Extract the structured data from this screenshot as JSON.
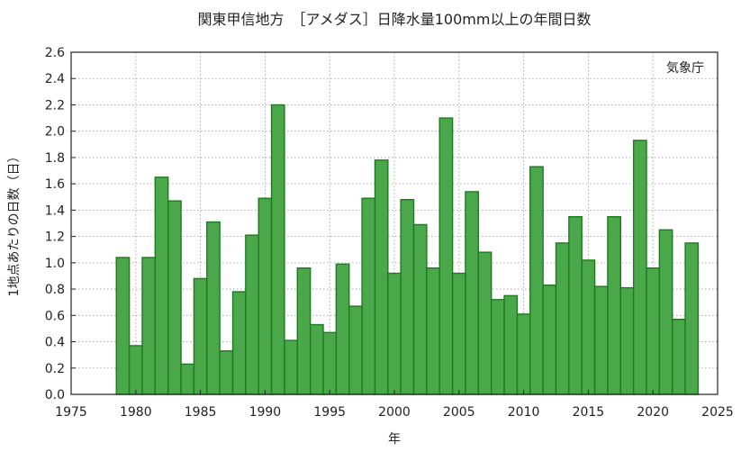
{
  "chart_data": {
    "type": "bar",
    "title": "関東甲信地方　［アメダス］日降水量100mm以上の年間日数",
    "xlabel": "年",
    "ylabel": "1地点あたりの日数（日）",
    "annotation": "気象庁",
    "xlim": [
      1975,
      2025
    ],
    "ylim": [
      0,
      2.6
    ],
    "xticks": [
      1975,
      1980,
      1985,
      1990,
      1995,
      2000,
      2005,
      2010,
      2015,
      2020,
      2025
    ],
    "yticks": [
      0.0,
      0.2,
      0.4,
      0.6,
      0.8,
      1.0,
      1.2,
      1.4,
      1.6,
      1.8,
      2.0,
      2.2,
      2.4,
      2.6
    ],
    "grid": true,
    "bar_color": "#4aa84a",
    "bar_edge_color": "#1e7a1e",
    "x": [
      1979,
      1980,
      1981,
      1982,
      1983,
      1984,
      1985,
      1986,
      1987,
      1988,
      1989,
      1990,
      1991,
      1992,
      1993,
      1994,
      1995,
      1996,
      1997,
      1998,
      1999,
      2000,
      2001,
      2002,
      2003,
      2004,
      2005,
      2006,
      2007,
      2008,
      2009,
      2010,
      2011,
      2012,
      2013,
      2014,
      2015,
      2016,
      2017,
      2018,
      2019,
      2020,
      2021,
      2022,
      2023
    ],
    "values": [
      1.04,
      0.37,
      1.04,
      1.65,
      1.47,
      0.23,
      0.88,
      1.31,
      0.33,
      0.78,
      1.21,
      1.49,
      2.2,
      0.41,
      0.96,
      0.53,
      0.47,
      0.99,
      0.67,
      1.49,
      1.78,
      0.92,
      1.48,
      1.29,
      0.96,
      2.1,
      0.92,
      1.54,
      1.08,
      0.72,
      0.75,
      0.61,
      1.73,
      0.83,
      1.15,
      1.35,
      1.02,
      0.82,
      1.35,
      0.81,
      1.93,
      0.96,
      1.25,
      0.57,
      1.15
    ]
  }
}
